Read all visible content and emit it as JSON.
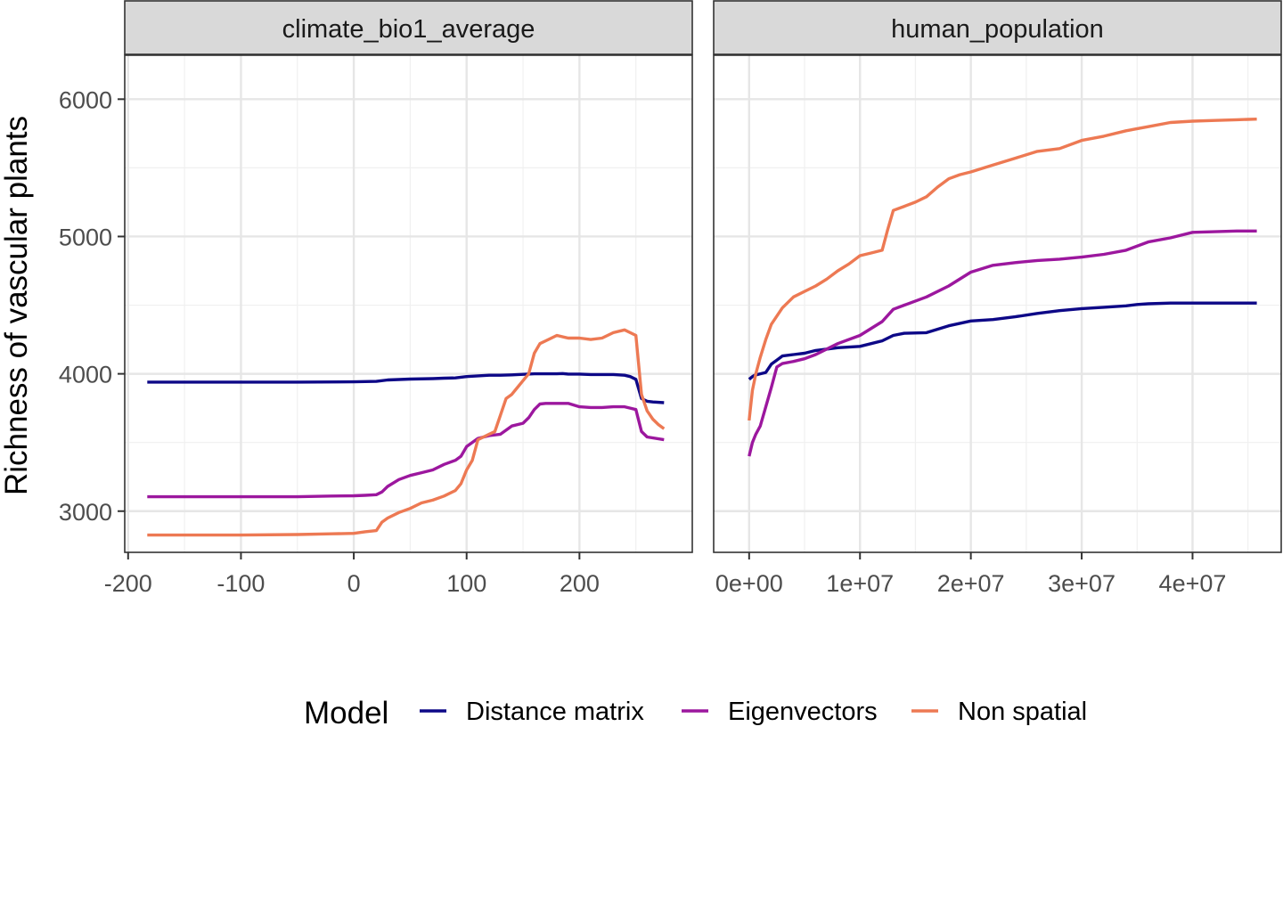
{
  "chart_data": {
    "type": "line",
    "ylabel": "Richness of vascular plants",
    "ylim": [
      2700,
      6320
    ],
    "y_ticks": [
      3000,
      4000,
      5000,
      6000
    ],
    "y_tick_labels": [
      "3000",
      "4000",
      "5000",
      "6000"
    ],
    "grid": true,
    "legend": {
      "title": "Model",
      "position": "bottom",
      "entries": [
        {
          "name": "Distance matrix",
          "color": "#0d0887"
        },
        {
          "name": "Eigenvectors",
          "color": "#9c179e"
        },
        {
          "name": "Non spatial",
          "color": "#ed7953"
        }
      ]
    },
    "panels": [
      {
        "strip": "climate_bio1_average",
        "xlim": [
          -203,
          300
        ],
        "x_ticks": [
          -200,
          -100,
          0,
          100,
          200
        ],
        "x_tick_labels": [
          "-200",
          "-100",
          "0",
          "100",
          "200"
        ],
        "series": [
          {
            "name": "Distance matrix",
            "color": "#0d0887",
            "x": [
              -183,
              -150,
              -100,
              -50,
              0,
              20,
              30,
              50,
              70,
              80,
              90,
              100,
              110,
              120,
              130,
              140,
              150,
              160,
              170,
              180,
              185,
              190,
              200,
              210,
              220,
              230,
              240,
              245,
              250,
              255,
              260,
              265,
              275
            ],
            "y": [
              3940,
              3940,
              3940,
              3940,
              3942,
              3945,
              3955,
              3962,
              3965,
              3968,
              3970,
              3980,
              3985,
              3990,
              3990,
              3992,
              3996,
              4000,
              4000,
              4000,
              4002,
              3998,
              3998,
              3995,
              3995,
              3995,
              3990,
              3980,
              3960,
              3820,
              3800,
              3795,
              3790
            ]
          },
          {
            "name": "Eigenvectors",
            "color": "#9c179e",
            "x": [
              -183,
              -150,
              -100,
              -50,
              -20,
              0,
              10,
              20,
              25,
              30,
              40,
              50,
              60,
              70,
              80,
              90,
              95,
              100,
              110,
              120,
              130,
              140,
              150,
              155,
              160,
              165,
              170,
              180,
              190,
              200,
              210,
              220,
              230,
              240,
              245,
              250,
              255,
              260,
              275
            ],
            "y": [
              3105,
              3105,
              3105,
              3105,
              3110,
              3112,
              3115,
              3120,
              3140,
              3180,
              3230,
              3260,
              3280,
              3300,
              3340,
              3370,
              3400,
              3470,
              3530,
              3550,
              3560,
              3620,
              3640,
              3680,
              3740,
              3780,
              3785,
              3785,
              3785,
              3760,
              3755,
              3755,
              3760,
              3760,
              3750,
              3740,
              3580,
              3540,
              3520
            ]
          },
          {
            "name": "Non spatial",
            "color": "#ed7953",
            "x": [
              -183,
              -150,
              -100,
              -50,
              -20,
              0,
              10,
              20,
              25,
              30,
              40,
              50,
              60,
              70,
              80,
              90,
              95,
              100,
              105,
              110,
              120,
              125,
              130,
              135,
              140,
              145,
              150,
              155,
              160,
              165,
              170,
              180,
              190,
              200,
              210,
              220,
              230,
              240,
              245,
              250,
              255,
              260,
              265,
              270,
              275
            ],
            "y": [
              2826,
              2826,
              2826,
              2830,
              2835,
              2838,
              2850,
              2858,
              2920,
              2950,
              2990,
              3020,
              3060,
              3080,
              3110,
              3150,
              3200,
              3300,
              3370,
              3520,
              3560,
              3580,
              3700,
              3820,
              3850,
              3900,
              3950,
              4000,
              4150,
              4220,
              4240,
              4280,
              4260,
              4260,
              4250,
              4260,
              4300,
              4320,
              4300,
              4280,
              3850,
              3730,
              3670,
              3630,
              3600
            ]
          }
        ]
      },
      {
        "strip": "human_population",
        "xlim": [
          -3200000,
          48000000
        ],
        "x_ticks": [
          0,
          10000000,
          20000000,
          30000000,
          40000000
        ],
        "x_tick_labels": [
          "0e+00",
          "1e+07",
          "2e+07",
          "3e+07",
          "4e+07"
        ],
        "series": [
          {
            "name": "Distance matrix",
            "color": "#0d0887",
            "x": [
              0,
              300000,
              500000,
              1000000,
              1500000,
              2000000,
              2500000,
              3000000,
              4000000,
              5000000,
              6000000,
              8000000,
              10000000,
              12000000,
              13000000,
              14000000,
              16000000,
              18000000,
              20000000,
              22000000,
              24000000,
              26000000,
              28000000,
              30000000,
              32000000,
              34000000,
              35000000,
              36000000,
              38000000,
              40000000,
              42000000,
              44000000,
              45800000
            ],
            "y": [
              3960,
              3980,
              3990,
              4000,
              4010,
              4070,
              4100,
              4130,
              4140,
              4150,
              4170,
              4190,
              4200,
              4240,
              4280,
              4295,
              4300,
              4350,
              4385,
              4395,
              4415,
              4440,
              4460,
              4475,
              4485,
              4495,
              4505,
              4510,
              4515,
              4515,
              4515,
              4515,
              4515
            ]
          },
          {
            "name": "Eigenvectors",
            "color": "#9c179e",
            "x": [
              0,
              300000,
              600000,
              1000000,
              1500000,
              2000000,
              2500000,
              3000000,
              4000000,
              5000000,
              6000000,
              8000000,
              10000000,
              12000000,
              13000000,
              14000000,
              16000000,
              18000000,
              20000000,
              22000000,
              24000000,
              26000000,
              28000000,
              30000000,
              32000000,
              34000000,
              36000000,
              38000000,
              40000000,
              42000000,
              44000000,
              45800000
            ],
            "y": [
              3400,
              3500,
              3560,
              3620,
              3760,
              3900,
              4050,
              4075,
              4090,
              4110,
              4140,
              4220,
              4280,
              4380,
              4470,
              4500,
              4560,
              4640,
              4740,
              4790,
              4810,
              4825,
              4835,
              4850,
              4870,
              4900,
              4960,
              4990,
              5030,
              5035,
              5040,
              5040
            ]
          },
          {
            "name": "Non spatial",
            "color": "#ed7953",
            "x": [
              0,
              300000,
              600000,
              1000000,
              1500000,
              2000000,
              3000000,
              4000000,
              5000000,
              6000000,
              7000000,
              8000000,
              9000000,
              10000000,
              11000000,
              12000000,
              12500000,
              13000000,
              14000000,
              15000000,
              16000000,
              17000000,
              18000000,
              19000000,
              20000000,
              22000000,
              24000000,
              26000000,
              28000000,
              30000000,
              32000000,
              34000000,
              36000000,
              38000000,
              40000000,
              42000000,
              44000000,
              45800000
            ],
            "y": [
              3660,
              3880,
              4000,
              4120,
              4250,
              4360,
              4480,
              4560,
              4600,
              4640,
              4690,
              4750,
              4800,
              4860,
              4880,
              4900,
              5050,
              5190,
              5220,
              5250,
              5290,
              5360,
              5420,
              5450,
              5470,
              5520,
              5570,
              5620,
              5640,
              5700,
              5730,
              5770,
              5800,
              5830,
              5840,
              5845,
              5850,
              5855
            ]
          }
        ]
      }
    ]
  }
}
